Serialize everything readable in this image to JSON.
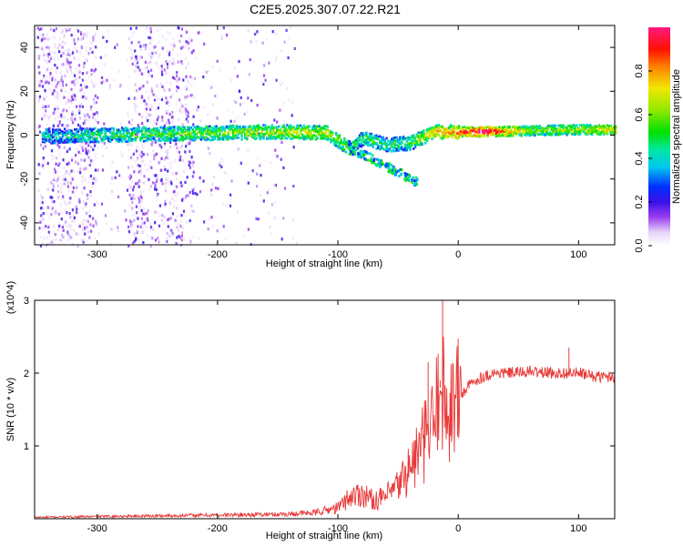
{
  "title": "C2E5.2025.307.07.22.R21",
  "chart_data": [
    {
      "type": "heatmap",
      "xlabel": "Height of straight line (km)",
      "ylabel": "Frequency (Hz)",
      "xlim": [
        -352,
        130
      ],
      "ylim": [
        -50,
        50
      ],
      "xticks": [
        -300,
        -200,
        -100,
        0,
        100
      ],
      "yticks": [
        40,
        20,
        0,
        -20,
        -40
      ],
      "grid": false,
      "colorbar": {
        "label": "Normalized spectral amplitude",
        "range": [
          0,
          1
        ],
        "ticks": [
          0.0,
          0.2,
          0.4,
          0.6,
          0.8
        ],
        "colormap": "white-violet-blue-cyan-green-yellow-red-magenta"
      },
      "ridge": [
        {
          "x": -340,
          "y": 0,
          "a": 0.35
        },
        {
          "x": -300,
          "y": 0.5,
          "a": 0.45
        },
        {
          "x": -250,
          "y": 1,
          "a": 0.5
        },
        {
          "x": -200,
          "y": 1.5,
          "a": 0.55
        },
        {
          "x": -150,
          "y": 2,
          "a": 0.6
        },
        {
          "x": -110,
          "y": 1.5,
          "a": 0.62
        },
        {
          "x": -100,
          "y": -2,
          "a": 0.55
        },
        {
          "x": -90,
          "y": -6,
          "a": 0.5
        },
        {
          "x": -80,
          "y": -1,
          "a": 0.45
        },
        {
          "x": -60,
          "y": -4,
          "a": 0.45
        },
        {
          "x": -40,
          "y": -3,
          "a": 0.5
        },
        {
          "x": -20,
          "y": 2,
          "a": 0.7
        },
        {
          "x": 0,
          "y": 2,
          "a": 0.8
        },
        {
          "x": 20,
          "y": 2,
          "a": 0.95
        },
        {
          "x": 60,
          "y": 2.5,
          "a": 0.55
        },
        {
          "x": 100,
          "y": 3,
          "a": 0.6
        },
        {
          "x": 130,
          "y": 3,
          "a": 0.7
        }
      ]
    },
    {
      "type": "line",
      "xlabel": "Height of straight line (km)",
      "ylabel": "SNR (10 * v/v)",
      "y_multiplier": "(x10^4)",
      "xlim": [
        -352,
        130
      ],
      "ylim": [
        0,
        3
      ],
      "xticks": [
        -300,
        -200,
        -100,
        0,
        100
      ],
      "yticks": [
        1,
        2,
        3
      ],
      "grid": false,
      "series": [
        {
          "color": "#e83a3a",
          "x": [
            -352,
            -300,
            -250,
            -200,
            -150,
            -120,
            -100,
            -90,
            -80,
            -70,
            -60,
            -50,
            -40,
            -30,
            -20,
            -15,
            -10,
            -5,
            0,
            10,
            20,
            30,
            40,
            60,
            80,
            100,
            115,
            130
          ],
          "values": [
            0.02,
            0.03,
            0.04,
            0.05,
            0.06,
            0.08,
            0.15,
            0.3,
            0.35,
            0.25,
            0.3,
            0.45,
            0.7,
            1.0,
            1.3,
            1.8,
            1.5,
            1.6,
            1.65,
            1.85,
            1.95,
            2.0,
            2.0,
            2.02,
            2.0,
            2.0,
            1.95,
            1.95
          ]
        }
      ],
      "spikes": [
        {
          "x": -13,
          "y": 3.0
        },
        {
          "x": -25,
          "y": 2.15
        },
        {
          "x": -15,
          "y": 1.9
        },
        {
          "x": 92,
          "y": 2.35
        }
      ]
    }
  ]
}
